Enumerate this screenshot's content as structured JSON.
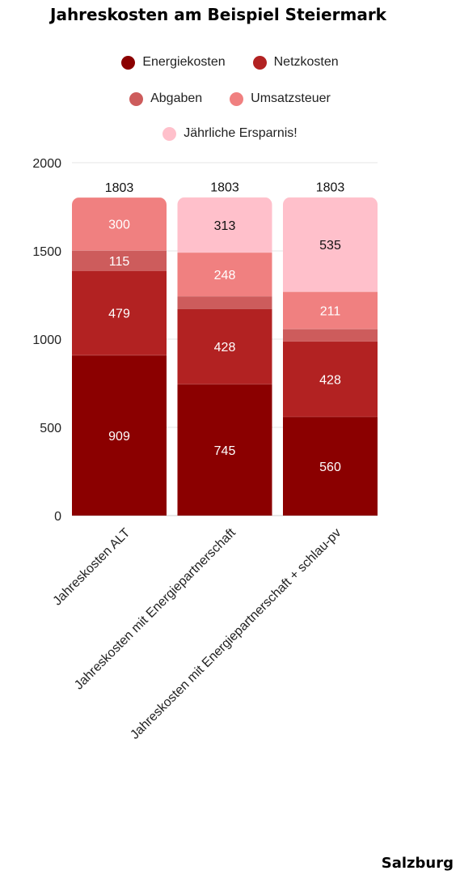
{
  "chart_data": {
    "type": "bar",
    "stacked": true,
    "title": "Jahreskosten am Beispiel Steiermark",
    "categories": [
      "Jahreskosten ALT",
      "Jahreskosten mit Energiepartnerschaft",
      "Jahreskosten mit Energiepartnerschaft + schlau-pv"
    ],
    "series": [
      {
        "name": "Energiekosten",
        "color": "#8b0000",
        "values": [
          909,
          745,
          560
        ]
      },
      {
        "name": "Netzkosten",
        "color": "#b22222",
        "values": [
          479,
          428,
          428
        ]
      },
      {
        "name": "Abgaben",
        "color": "#cd5c5c",
        "values": [
          115,
          70,
          70
        ]
      },
      {
        "name": "Umsatzsteuer",
        "color": "#f08080",
        "values": [
          300,
          248,
          211
        ]
      },
      {
        "name": "Jährliche Ersparnis!",
        "color": "#ffc0cb",
        "values": [
          0,
          313,
          535
        ]
      }
    ],
    "data_labels": [
      [
        "909",
        "745",
        "560"
      ],
      [
        "479",
        "428",
        "428"
      ],
      [
        "115",
        "",
        ""
      ],
      [
        "300",
        "248",
        "211"
      ],
      [
        "",
        "313",
        "535"
      ]
    ],
    "totals": [
      "1803",
      "1803",
      "1803"
    ],
    "yticks": [
      "0",
      "500",
      "1000",
      "1500",
      "2000"
    ],
    "ylim": [
      0,
      2000
    ],
    "grid": true,
    "legend_position": "top"
  },
  "footer_label": "Salzburg"
}
